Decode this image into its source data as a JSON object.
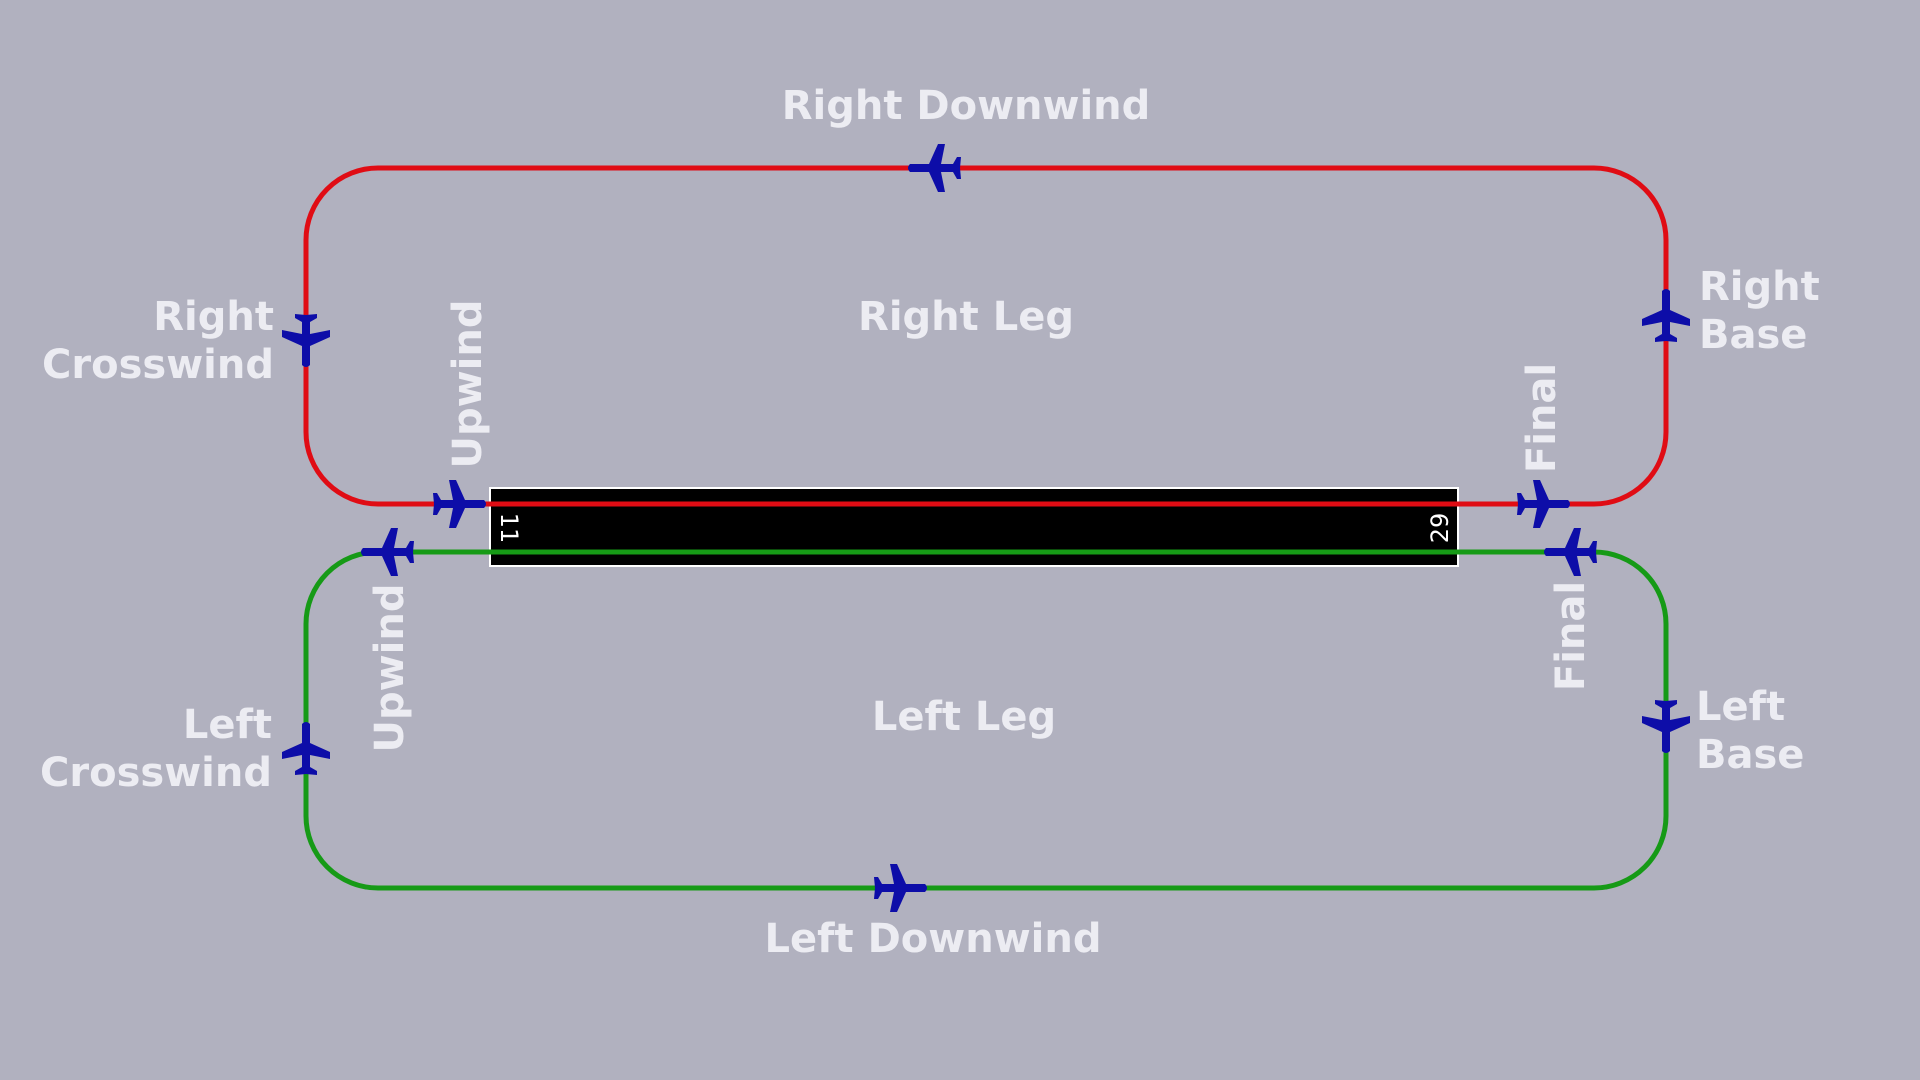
{
  "colors": {
    "background": "#b1b1bf",
    "right_pattern": "#e00c14",
    "left_pattern": "#169a16",
    "aircraft": "#0d0da8",
    "runway": "#000000",
    "runway_border": "#ffffff",
    "label_text": "#ececf2"
  },
  "runway": {
    "end_west": "11",
    "end_east": "29"
  },
  "labels": {
    "right_downwind": "Right Downwind",
    "right_leg": "Right Leg",
    "right_crosswind_line1": "Right",
    "right_crosswind_line2": "Crosswind",
    "right_base_line1": "Right",
    "right_base_line2": "Base",
    "right_upwind": "Upwind",
    "right_final": "Final",
    "left_downwind": "Left Downwind",
    "left_leg": "Left Leg",
    "left_crosswind_line1": "Left",
    "left_crosswind_line2": "Crosswind",
    "left_base_line1": "Left",
    "left_base_line2": "Base",
    "left_upwind": "Upwind",
    "left_final": "Final"
  },
  "aircraft_icon": "airplane-icon"
}
